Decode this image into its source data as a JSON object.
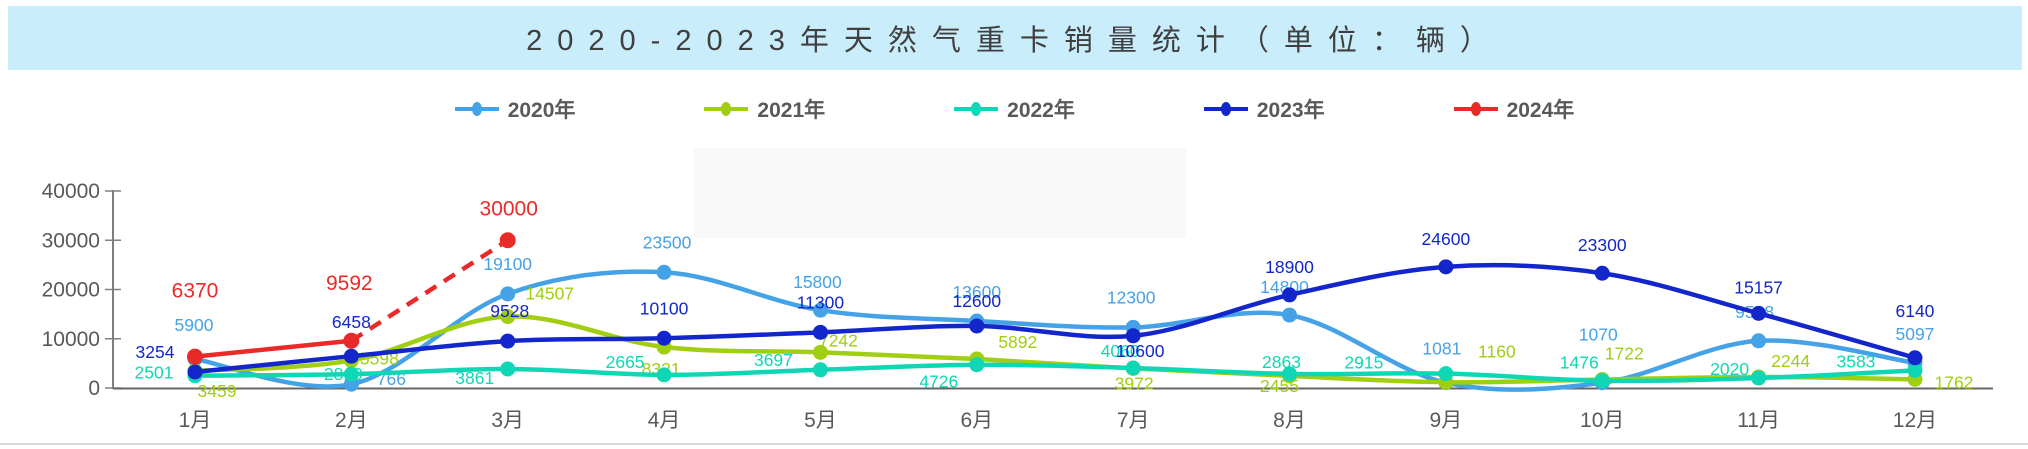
{
  "title": {
    "text": "2020-2023年天然气重卡销量统计（单位：辆）"
  },
  "legend": {
    "items": [
      {
        "label": "2020年",
        "color": "#45A2E6"
      },
      {
        "label": "2021年",
        "color": "#A0CE10"
      },
      {
        "label": "2022年",
        "color": "#0FD7B5"
      },
      {
        "label": "2023年",
        "color": "#1226CB"
      },
      {
        "label": "2024年",
        "color": "#E92A28"
      }
    ]
  },
  "chart_data": {
    "type": "line",
    "title": "2020-2023年天然气重卡销量统计（单位：辆）",
    "xlabel": "",
    "ylabel": "",
    "ylim": [
      0,
      40000
    ],
    "yticks": [
      0,
      10000,
      20000,
      30000,
      40000
    ],
    "grid": false,
    "legend_position": "top",
    "categories": [
      "1月",
      "2月",
      "3月",
      "4月",
      "5月",
      "6月",
      "7月",
      "8月",
      "9月",
      "10月",
      "11月",
      "12月"
    ],
    "series": [
      {
        "name": "2020年",
        "color": "#45A2E6",
        "dashed_from": null,
        "values": [
          5900,
          766,
          19100,
          23500,
          15800,
          13600,
          12300,
          14800,
          1081,
          1070,
          9588,
          5097
        ]
      },
      {
        "name": "2021年",
        "color": "#A0CE10",
        "dashed_from": null,
        "values": [
          3459,
          5598,
          14507,
          8321,
          7242,
          5892,
          3972,
          2455,
          1160,
          1722,
          2244,
          1762
        ]
      },
      {
        "name": "2022年",
        "color": "#0FD7B5",
        "dashed_from": null,
        "values": [
          2501,
          2819,
          3861,
          2665,
          3697,
          4726,
          4060,
          2863,
          2915,
          1476,
          2020,
          3583
        ]
      },
      {
        "name": "2023年",
        "color": "#1226CB",
        "dashed_from": null,
        "values": [
          3254,
          6458,
          9528,
          10100,
          11300,
          12600,
          10600,
          18900,
          24600,
          23300,
          15157,
          6140
        ]
      },
      {
        "name": "2024年",
        "color": "#E92A28",
        "dashed_from": 1,
        "values": [
          6370,
          9592,
          30000,
          null,
          null,
          null,
          null,
          null,
          null,
          null,
          null,
          null
        ]
      }
    ]
  }
}
